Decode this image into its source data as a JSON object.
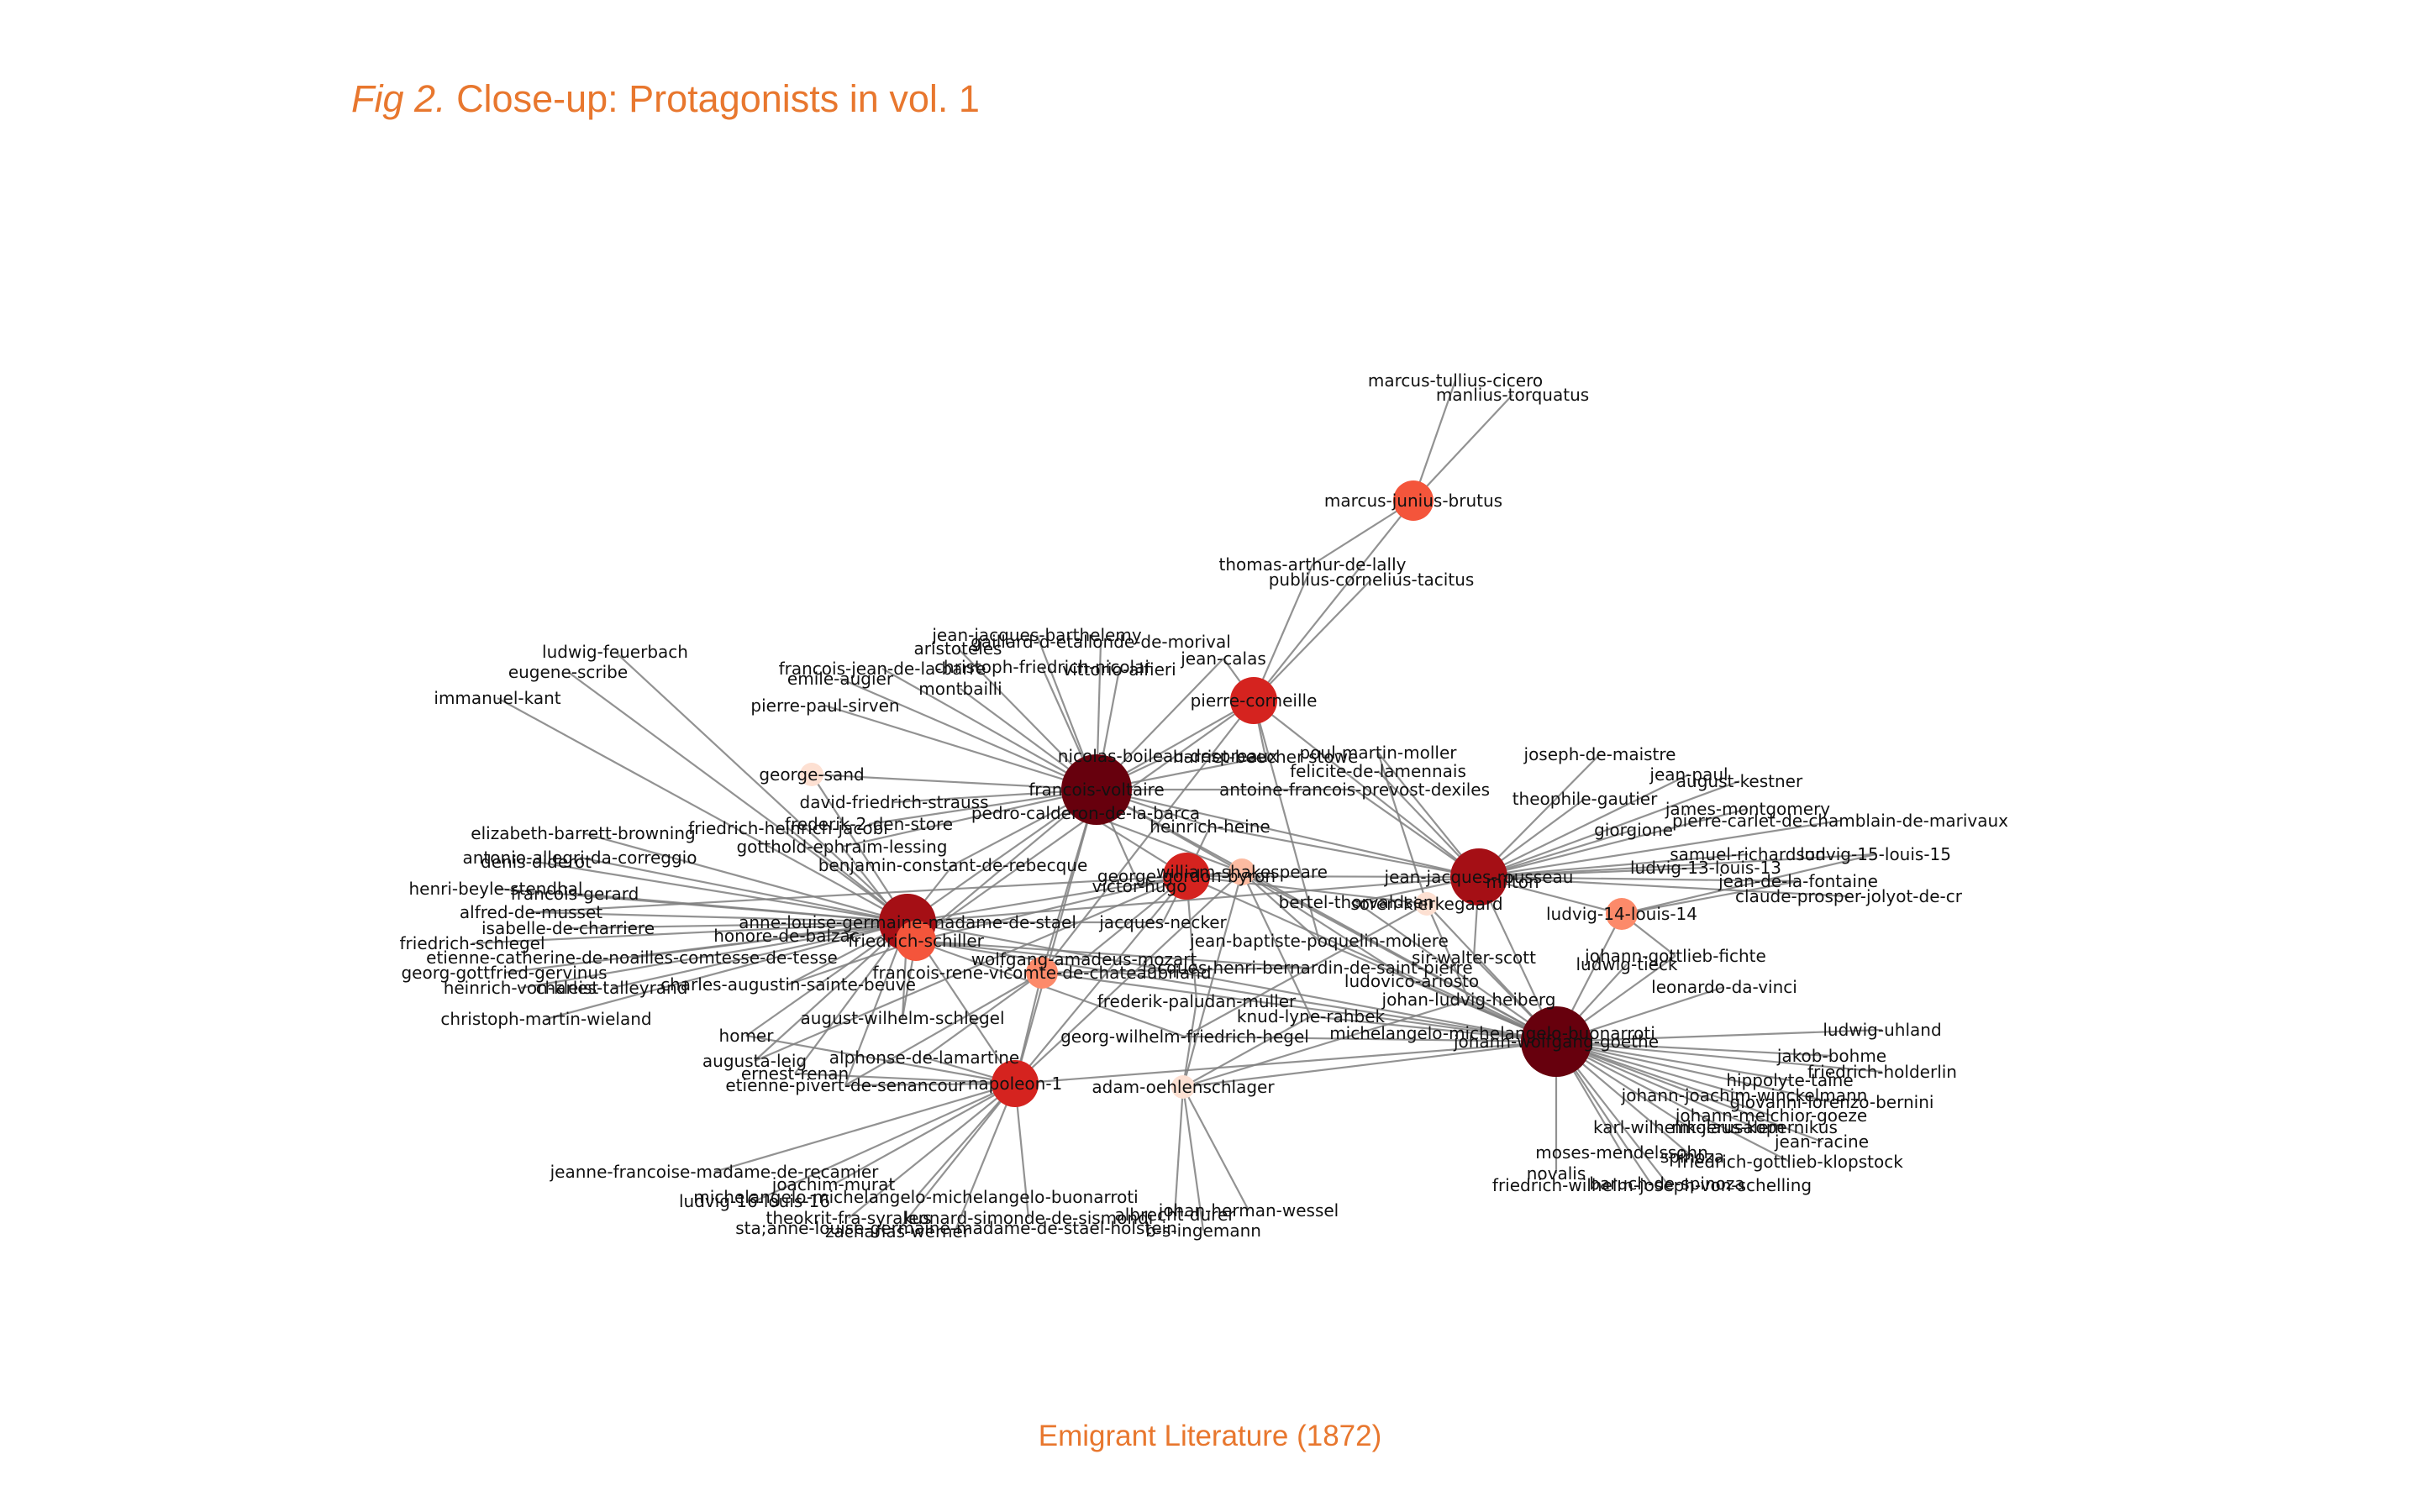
{
  "figure": {
    "title_prefix": "Fig 2.",
    "title_text": "Close-up: Protagonists in vol. 1",
    "caption": "Emigrant Literature (1872)"
  },
  "colors": {
    "accent": "#e8772e",
    "edge": "#7f7f7f",
    "degree_scale": [
      "#fde0d2",
      "#fcbba1",
      "#fc8a6a",
      "#f4553b",
      "#d5231f",
      "#a50f15",
      "#67000d"
    ]
  },
  "network": {
    "nodes": [
      {
        "id": "francois-voltaire",
        "label": "francois-voltaire",
        "degree": 6
      },
      {
        "id": "johann-wolfgang-goethe",
        "label": "johann-wolfgang-goethe",
        "degree": 6
      },
      {
        "id": "anne-louise-germaine-madame-de-stael",
        "label": "anne-louise-germaine-madame-de-stael",
        "degree": 5
      },
      {
        "id": "jean-jacques-rousseau",
        "label": "jean-jacques-rousseau",
        "degree": 5
      },
      {
        "id": "napoleon-1",
        "label": "napoleon-1",
        "degree": 4
      },
      {
        "id": "george-gordon-byron",
        "label": "george-gordon-byron",
        "degree": 4
      },
      {
        "id": "pierre-corneille",
        "label": "pierre-corneille",
        "degree": 4
      },
      {
        "id": "friedrich-schiller",
        "label": "friedrich-schiller",
        "degree": 3
      },
      {
        "id": "marcus-junius-brutus",
        "label": "marcus-junius-brutus",
        "degree": 3
      },
      {
        "id": "francois-rene-vicomte-de-chateaubriand",
        "label": "francois-rene-vicomte-de-chateaubriand",
        "degree": 2
      },
      {
        "id": "ludvig-14-louis-14",
        "label": "ludvig-14-louis-14",
        "degree": 2
      },
      {
        "id": "william-shakespeare",
        "label": "william-shakespeare",
        "degree": 1
      },
      {
        "id": "adam-oehlenschlager",
        "label": "adam-oehlenschlager",
        "degree": 0
      },
      {
        "id": "george-sand",
        "label": "george-sand",
        "degree": 0
      },
      {
        "id": "soren-kierkegaard",
        "label": "soren-kierkegaard",
        "degree": 0
      },
      {
        "id": "marcus-tullius-cicero",
        "label": "marcus-tullius-cicero",
        "degree": -1
      },
      {
        "id": "manlius-torquatus",
        "label": "manlius-torquatus",
        "degree": -1
      },
      {
        "id": "thomas-arthur-de-lally",
        "label": "thomas-arthur-de-lally",
        "degree": -1
      },
      {
        "id": "publius-cornelius-tacitus",
        "label": "publius-cornelius-tacitus",
        "degree": -1
      },
      {
        "id": "jean-jacques-barthelemy",
        "label": "jean-jacques-barthelemy",
        "degree": -1
      },
      {
        "id": "aristoteles",
        "label": "aristoteles",
        "degree": -1
      },
      {
        "id": "gaillard-d-etallonde-de-morival",
        "label": "gaillard-d-etallonde-de-morival",
        "degree": -1
      },
      {
        "id": "jean-calas",
        "label": "jean-calas",
        "degree": -1
      },
      {
        "id": "francois-jean-de-la-barre",
        "label": "francois-jean-de-la-barre",
        "degree": -1
      },
      {
        "id": "christoph-friedrich-nicolai",
        "label": "christoph-friedrich-nicolai",
        "degree": -1
      },
      {
        "id": "vittorio-alfieri",
        "label": "vittorio-alfieri",
        "degree": -1
      },
      {
        "id": "emile-augier",
        "label": "emile-augier",
        "degree": -1
      },
      {
        "id": "montbailli",
        "label": "montbailli",
        "degree": -1
      },
      {
        "id": "ludwig-feuerbach",
        "label": "ludwig-feuerbach",
        "degree": -1
      },
      {
        "id": "eugene-scribe",
        "label": "eugene-scribe",
        "degree": -1
      },
      {
        "id": "immanuel-kant",
        "label": "immanuel-kant",
        "degree": -1
      },
      {
        "id": "pierre-paul-sirven",
        "label": "pierre-paul-sirven",
        "degree": -1
      },
      {
        "id": "nicolas-boileau-despreaux",
        "label": "nicolas-boileau-despreaux",
        "degree": -1
      },
      {
        "id": "harriet-beecher-stowe",
        "label": "harriet-beecher-stowe",
        "degree": -1
      },
      {
        "id": "poul-martin-moller",
        "label": "poul-martin-moller",
        "degree": -1
      },
      {
        "id": "felicite-de-lamennais",
        "label": "felicite-de-lamennais",
        "degree": -1
      },
      {
        "id": "antoine-francois-prevost-dexiles",
        "label": "antoine-francois-prevost-dexiles",
        "degree": -1
      },
      {
        "id": "david-friedrich-strauss",
        "label": "david-friedrich-strauss",
        "degree": -1
      },
      {
        "id": "pedro-calderon-de-la-barca",
        "label": "pedro-calderon-de-la-barca",
        "degree": -1
      },
      {
        "id": "friedrich-heinrich-jacobi",
        "label": "friedrich-heinrich-jacobi",
        "degree": -1
      },
      {
        "id": "frederik-2-den-store",
        "label": "frederik-2-den-store",
        "degree": -1
      },
      {
        "id": "heinrich-heine",
        "label": "heinrich-heine",
        "degree": -1
      },
      {
        "id": "elizabeth-barrett-browning",
        "label": "elizabeth-barrett-browning",
        "degree": -1
      },
      {
        "id": "gotthold-ephraim-lessing",
        "label": "gotthold-ephraim-lessing",
        "degree": -1
      },
      {
        "id": "denis-diderot",
        "label": "denis-diderot",
        "degree": -1
      },
      {
        "id": "antonio-allegri-da-correggio",
        "label": "antonio-allegri-da-correggio",
        "degree": -1
      },
      {
        "id": "benjamin-constant-de-rebecque",
        "label": "benjamin-constant-de-rebecque",
        "degree": -1
      },
      {
        "id": "henri-beyle-stendhal",
        "label": "henri-beyle-stendhal",
        "degree": -1
      },
      {
        "id": "francois-gerard",
        "label": "francois-gerard",
        "degree": -1
      },
      {
        "id": "alfred-de-musset",
        "label": "alfred-de-musset",
        "degree": -1
      },
      {
        "id": "victor-hugo",
        "label": "victor-hugo",
        "degree": -1
      },
      {
        "id": "jacques-necker",
        "label": "jacques-necker",
        "degree": -1
      },
      {
        "id": "isabelle-de-charriere",
        "label": "isabelle-de-charriere",
        "degree": -1
      },
      {
        "id": "honore-de-balzac",
        "label": "honore-de-balzac",
        "degree": -1
      },
      {
        "id": "friedrich-schlegel",
        "label": "friedrich-schlegel",
        "degree": -1
      },
      {
        "id": "etienne-catherine-de-noailles-comtesse-de-tesse",
        "label": "etienne-catherine-de-noailles-comtesse-de-tesse",
        "degree": -1
      },
      {
        "id": "georg-gottfried-gervinus",
        "label": "georg-gottfried-gervinus",
        "degree": -1
      },
      {
        "id": "heinrich-von-kleist",
        "label": "heinrich-von-kleist",
        "degree": -1
      },
      {
        "id": "charles-talleyrand",
        "label": "charles-talleyrand",
        "degree": -1
      },
      {
        "id": "charles-augustin-sainte-beuve",
        "label": "charles-augustin-sainte-beuve",
        "degree": -1
      },
      {
        "id": "christoph-martin-wieland",
        "label": "christoph-martin-wieland",
        "degree": -1
      },
      {
        "id": "wolfgang-amadeus-mozart",
        "label": "wolfgang-amadeus-mozart",
        "degree": -1
      },
      {
        "id": "jean-baptiste-poquelin-moliere",
        "label": "jean-baptiste-poquelin-moliere",
        "degree": -1
      },
      {
        "id": "jacques-henri-bernardin-de-saint-pierre",
        "label": "jacques-henri-bernardin-de-saint-pierre",
        "degree": -1
      },
      {
        "id": "bertel-thorvaldsen",
        "label": "bertel-thorvaldsen",
        "degree": -1
      },
      {
        "id": "sir-walter-scott",
        "label": "sir-walter-scott",
        "degree": -1
      },
      {
        "id": "ludovico-ariosto",
        "label": "ludovico-ariosto",
        "degree": -1
      },
      {
        "id": "frederik-paludan-muller",
        "label": "frederik-paludan-muller",
        "degree": -1
      },
      {
        "id": "august-wilhelm-schlegel",
        "label": "august-wilhelm-schlegel",
        "degree": -1
      },
      {
        "id": "knud-lyne-rahbek",
        "label": "knud-lyne-rahbek",
        "degree": -1
      },
      {
        "id": "johan-ludvig-heiberg",
        "label": "johan-ludvig-heiberg",
        "degree": -1
      },
      {
        "id": "georg-wilhelm-friedrich-hegel",
        "label": "georg-wilhelm-friedrich-hegel",
        "degree": -1
      },
      {
        "id": "michelangelo-michelangelo-buonarroti",
        "label": "michelangelo-michelangelo-buonarroti",
        "degree": -1
      },
      {
        "id": "homer",
        "label": "homer",
        "degree": -1
      },
      {
        "id": "alphonse-de-lamartine",
        "label": "alphonse-de-lamartine",
        "degree": -1
      },
      {
        "id": "augusta-leig",
        "label": "augusta-leig",
        "degree": -1
      },
      {
        "id": "ernest-renan",
        "label": "ernest-renan",
        "degree": -1
      },
      {
        "id": "etienne-pivert-de-senancour",
        "label": "etienne-pivert-de-senancour",
        "degree": -1
      },
      {
        "id": "jeanne-francoise-madame-de-recamier",
        "label": "jeanne-francoise-madame-de-recamier",
        "degree": -1
      },
      {
        "id": "joachim-murat",
        "label": "joachim-murat",
        "degree": -1
      },
      {
        "id": "michelangelo-michelangelo-michelangelo-buonarroti",
        "label": "michelangelo-michelangelo-michelangelo-buonarroti",
        "degree": -1
      },
      {
        "id": "ludvig-16-louis-16",
        "label": "ludvig-16-louis-16",
        "degree": -1
      },
      {
        "id": "theokrit-fra-syrakus",
        "label": "theokrit-fra-syrakus",
        "degree": -1
      },
      {
        "id": "leonard-simonde-de-sismondi",
        "label": "leonard-simonde-de-sismondi",
        "degree": -1
      },
      {
        "id": "albrecht-durer",
        "label": "albrecht-durer",
        "degree": -1
      },
      {
        "id": "johan-herman-wessel",
        "label": "johan-herman-wessel",
        "degree": -1
      },
      {
        "id": "sta-anne-louise-germaine-madame-de-stael-holstein",
        "label": "sta;anne-louise-germaine-madame-de-stael-holstein",
        "degree": -1
      },
      {
        "id": "zacharias-werner",
        "label": "zacharias-werner",
        "degree": -1
      },
      {
        "id": "b-s-ingemann",
        "label": "b-s-ingemann",
        "degree": -1
      },
      {
        "id": "joseph-de-maistre",
        "label": "joseph-de-maistre",
        "degree": -1
      },
      {
        "id": "jean-paul",
        "label": "jean-paul",
        "degree": -1
      },
      {
        "id": "august-kestner",
        "label": "august-kestner",
        "degree": -1
      },
      {
        "id": "theophile-gautier",
        "label": "theophile-gautier",
        "degree": -1
      },
      {
        "id": "james-montgomery",
        "label": "james-montgomery",
        "degree": -1
      },
      {
        "id": "pierre-carlet-de-chamblain-de-marivaux",
        "label": "pierre-carlet-de-chamblain-de-marivaux",
        "degree": -1
      },
      {
        "id": "giorgione",
        "label": "giorgione",
        "degree": -1
      },
      {
        "id": "samuel-richardson",
        "label": "samuel-richardson",
        "degree": -1
      },
      {
        "id": "ludvig-15-louis-15",
        "label": "ludvig-15-louis-15",
        "degree": -1
      },
      {
        "id": "ludvig-13-louis-13",
        "label": "ludvig-13-louis-13",
        "degree": -1
      },
      {
        "id": "jean-de-la-fontaine",
        "label": "jean-de-la-fontaine",
        "degree": -1
      },
      {
        "id": "claude-prosper-jolyot-de-cr",
        "label": "claude-prosper-jolyot-de-cr",
        "degree": -1
      },
      {
        "id": "milton",
        "label": "milton",
        "degree": -1
      },
      {
        "id": "johann-gottlieb-fichte",
        "label": "johann-gottlieb-fichte",
        "degree": -1
      },
      {
        "id": "ludwig-tieck",
        "label": "ludwig-tieck",
        "degree": -1
      },
      {
        "id": "leonardo-da-vinci",
        "label": "leonardo-da-vinci",
        "degree": -1
      },
      {
        "id": "ludwig-uhland",
        "label": "ludwig-uhland",
        "degree": -1
      },
      {
        "id": "jakob-bohme",
        "label": "jakob-bohme",
        "degree": -1
      },
      {
        "id": "friedrich-holderlin",
        "label": "friedrich-holderlin",
        "degree": -1
      },
      {
        "id": "hippolyte-taine",
        "label": "hippolyte-taine",
        "degree": -1
      },
      {
        "id": "johann-joachim-winckelmann",
        "label": "johann-joachim-winckelmann",
        "degree": -1
      },
      {
        "id": "giovanni-lorenzo-bernini",
        "label": "giovanni-lorenzo-bernini",
        "degree": -1
      },
      {
        "id": "johann-melchior-goeze",
        "label": "johann-melchior-goeze",
        "degree": -1
      },
      {
        "id": "karl-wilhelm-jerusalem",
        "label": "karl-wilhelm-jerusalem",
        "degree": -1
      },
      {
        "id": "nikolaus-kopernikus",
        "label": "nikolaus-kopernikus",
        "degree": -1
      },
      {
        "id": "jean-racine",
        "label": "jean-racine",
        "degree": -1
      },
      {
        "id": "moses-mendelssohn",
        "label": "moses-mendelssohn",
        "degree": -1
      },
      {
        "id": "spinoza",
        "label": "spinoza",
        "degree": -1
      },
      {
        "id": "friedrich-gottlieb-klopstock",
        "label": "friedrich-gottlieb-klopstock",
        "degree": -1
      },
      {
        "id": "novalis",
        "label": "novalis",
        "degree": -1
      },
      {
        "id": "baruch-de-spinoza",
        "label": "baruch-de-spinoza",
        "degree": -1
      },
      {
        "id": "friedrich-wilhelm-joseph-von-schelling",
        "label": "friedrich-wilhelm-joseph-von-schelling",
        "degree": -1
      }
    ]
  }
}
